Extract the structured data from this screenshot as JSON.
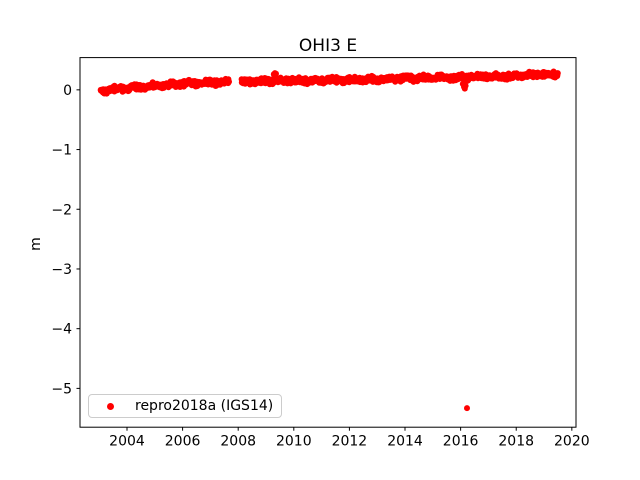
{
  "figure": {
    "background": "#ffffff",
    "text_color": "#000000",
    "spine_color": "#000000"
  },
  "chart_data": {
    "type": "scatter",
    "title": "OHI3 E",
    "xlabel": "",
    "ylabel": "m",
    "xlim": [
      2002.31,
      2020.15
    ],
    "ylim": [
      -5.65,
      0.54
    ],
    "xticks": [
      2004,
      2006,
      2008,
      2010,
      2012,
      2014,
      2016,
      2018,
      2020
    ],
    "yticks": [
      0,
      -1,
      -2,
      -3,
      -4,
      -5
    ],
    "grid": false,
    "legend": {
      "position": "lower left",
      "entries": [
        {
          "label": "repro2018a (IGS14)",
          "marker_color": "#ff0000",
          "marker": "dot"
        }
      ]
    },
    "series": [
      {
        "name": "repro2018a (IGS14)",
        "color": "#ff0000",
        "marker": "dot",
        "marker_radius_px": 3,
        "x_start": 2003.05,
        "x_end": 2019.5,
        "sample_interval_years": 0.011,
        "trend_points": [
          [
            2003.05,
            -0.015
          ],
          [
            2004.5,
            0.05
          ],
          [
            2006.0,
            0.1
          ],
          [
            2007.68,
            0.135
          ],
          [
            2008.12,
            0.14
          ],
          [
            2010.0,
            0.155
          ],
          [
            2012.0,
            0.165
          ],
          [
            2014.0,
            0.19
          ],
          [
            2016.0,
            0.21
          ],
          [
            2017.5,
            0.225
          ],
          [
            2019.5,
            0.265
          ]
        ],
        "noise_amplitude": 0.055,
        "wobble": {
          "amplitude": 0.012,
          "frequency": 9.7
        },
        "gaps": [
          [
            2007.68,
            2008.12
          ]
        ],
        "extra_points": [
          [
            2003.55,
            0.07
          ],
          [
            2009.28,
            0.26
          ],
          [
            2009.32,
            0.28
          ],
          [
            2009.36,
            0.27
          ],
          [
            2016.08,
            0.1
          ],
          [
            2016.12,
            0.05
          ],
          [
            2016.15,
            0.02
          ],
          [
            2016.18,
            0.07
          ],
          [
            2016.23,
            -5.33
          ]
        ]
      }
    ]
  }
}
